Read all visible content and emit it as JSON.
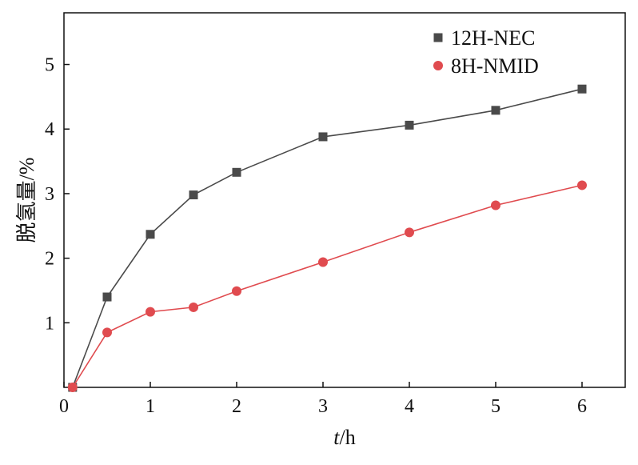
{
  "chart_data": {
    "type": "line",
    "title": "",
    "xlabel_italic": "t",
    "xlabel_unit": "/h",
    "ylabel": "脱氢量/%",
    "xlim": [
      0,
      6.5
    ],
    "ylim": [
      0,
      5.8
    ],
    "xticks": [
      0,
      1,
      2,
      3,
      4,
      5,
      6
    ],
    "yticks": [
      1,
      2,
      3,
      4,
      5
    ],
    "grid": false,
    "legend_position": "top-right",
    "series": [
      {
        "name": "12H-NEC",
        "marker": "square",
        "color": "#4a4a4a",
        "x": [
          0.1,
          0.5,
          1,
          1.5,
          2,
          3,
          4,
          5,
          6
        ],
        "y": [
          0,
          1.4,
          2.37,
          2.98,
          3.33,
          3.88,
          4.06,
          4.29,
          4.62
        ]
      },
      {
        "name": "8H-NMID",
        "marker": "circle",
        "color": "#e04b4f",
        "x": [
          0.1,
          0.5,
          1,
          1.5,
          2,
          3,
          4,
          5,
          6
        ],
        "y": [
          0,
          0.85,
          1.17,
          1.24,
          1.49,
          1.94,
          2.4,
          2.82,
          3.13
        ]
      }
    ]
  }
}
